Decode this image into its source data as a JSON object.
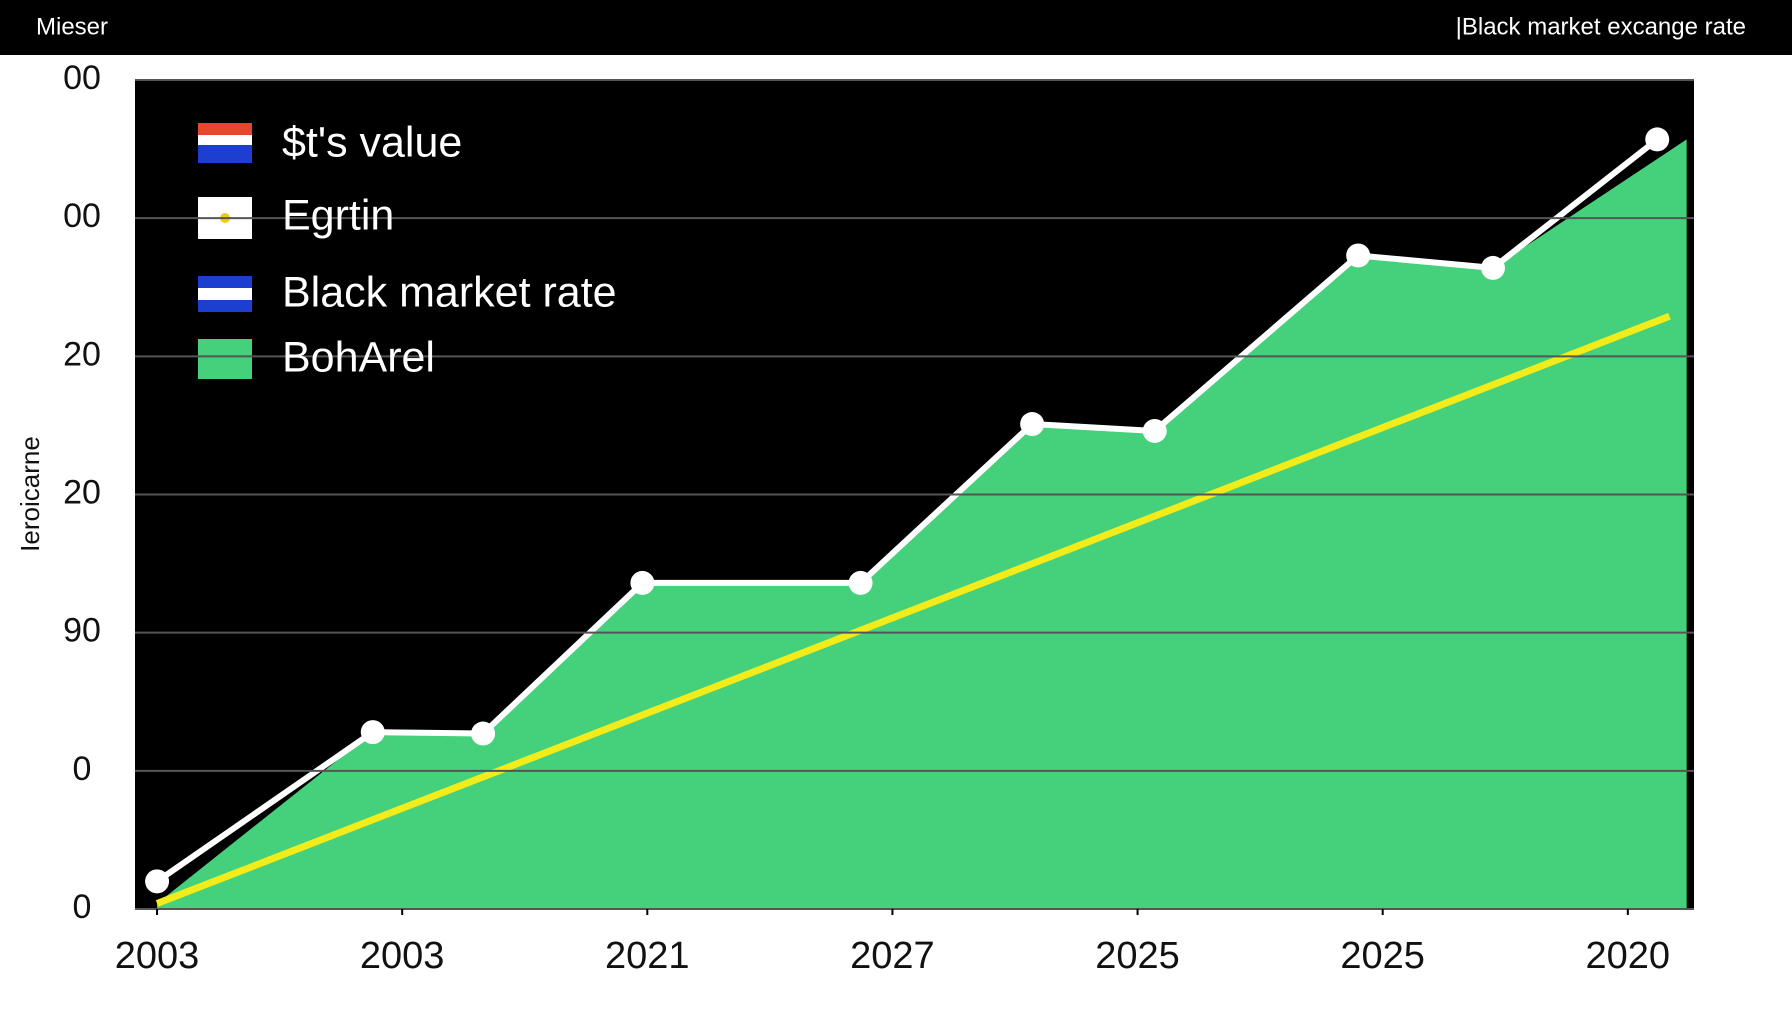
{
  "chart_data": {
    "type": "line",
    "title": "Mieser",
    "subtitle": "|Black market excange rate",
    "y_label": "Ieroicarne",
    "xlim": [
      -0.09,
      6.27
    ],
    "ylim": [
      0,
      6
    ],
    "xticks": [
      {
        "value": 0,
        "label": "2003"
      },
      {
        "value": 1,
        "label": "2003"
      },
      {
        "value": 2,
        "label": "2021"
      },
      {
        "value": 3,
        "label": "2027"
      },
      {
        "value": 4,
        "label": "2025"
      },
      {
        "value": 5,
        "label": "2025"
      },
      {
        "value": 6,
        "label": "2020"
      }
    ],
    "yticks": [
      0,
      {
        "value": 1,
        "label": "0"
      },
      {
        "value": 2,
        "label": "90"
      },
      {
        "value": 3,
        "label": "20"
      },
      {
        "value": 4,
        "label": "20"
      },
      {
        "value": 5,
        "label": "00"
      },
      {
        "value": 6,
        "label": "00"
      }
    ],
    "grid": true,
    "legend": "upper left",
    "series": [
      {
        "name": "$t's value",
        "color": "#e8452c"
      },
      {
        "name": "Egrtin",
        "color": "#f2ec1a",
        "kind": "line",
        "x": [
          0,
          6.17
        ],
        "values": [
          0.04,
          4.29
        ]
      },
      {
        "name": "Black market rate",
        "color": "#ffffff",
        "kind": "line-markers",
        "x": [
          0,
          0.88,
          1.33,
          1.98,
          2.87,
          3.57,
          4.07,
          4.9,
          5.45,
          6.12
        ],
        "values": [
          0.2,
          1.28,
          1.27,
          2.36,
          2.36,
          3.51,
          3.46,
          4.73,
          4.64,
          5.57
        ]
      },
      {
        "name": "BohArel",
        "color": "#45d07c",
        "kind": "area",
        "x": [
          0,
          0.88,
          1.33,
          1.98,
          2.87,
          3.57,
          4.07,
          4.9,
          5.45,
          6.24
        ],
        "values": [
          0.04,
          1.28,
          1.27,
          2.36,
          2.36,
          3.51,
          3.46,
          4.73,
          4.64,
          5.57
        ]
      }
    ]
  }
}
